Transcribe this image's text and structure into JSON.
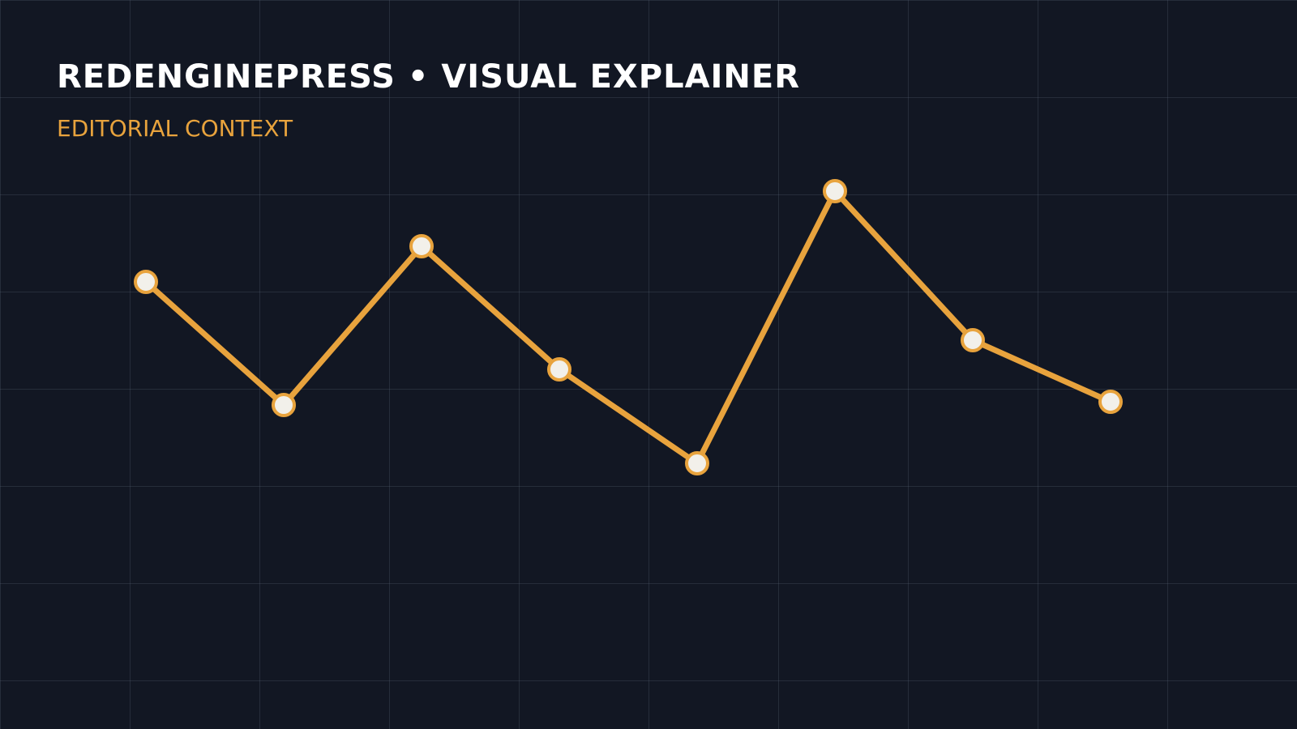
{
  "chart_data": {
    "type": "line",
    "title": "REDENGINEPRESS • VISUAL EXPLAINER",
    "subtitle": "EDITORIAL CONTEXT",
    "values": [
      63,
      25,
      74,
      36,
      7,
      91,
      45,
      26
    ],
    "color": "#e8a33d",
    "ylim": [
      0,
      100
    ]
  }
}
